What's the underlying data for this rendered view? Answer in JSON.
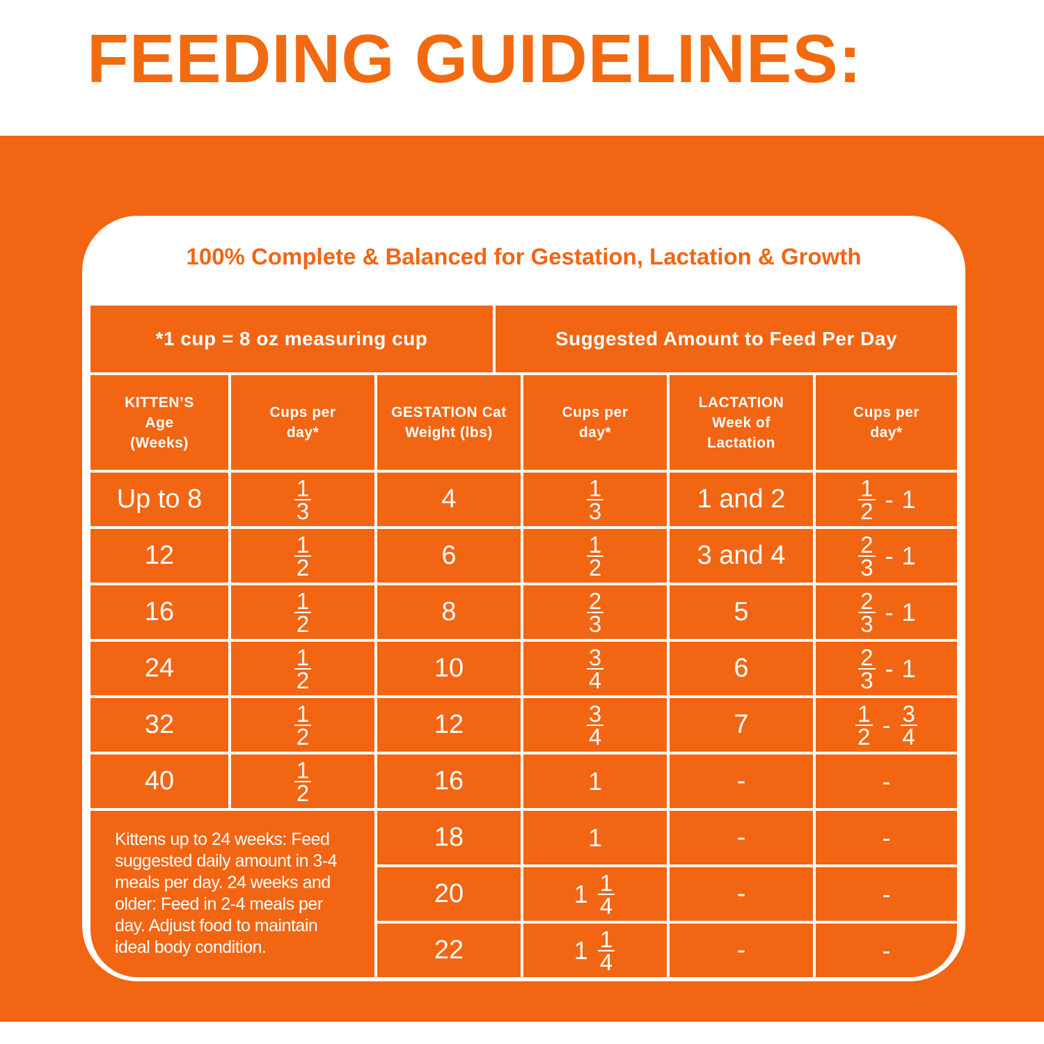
{
  "header": {
    "title": "FEEDING GUIDELINES:"
  },
  "card": {
    "subtitle": "100% Complete & Balanced for Gestation, Lactation & Growth"
  },
  "table": {
    "top_left": "*1 cup = 8 oz measuring cup",
    "top_right": "Suggested Amount to Feed Per Day",
    "columns": [
      [
        "KITTEN’S",
        "Age",
        "(Weeks)"
      ],
      [
        "Cups per",
        "day*"
      ],
      [
        "GESTATION Cat",
        "Weight (lbs)"
      ],
      [
        "Cups per",
        "day*"
      ],
      [
        "LACTATION",
        "Week of",
        "Lactation"
      ],
      [
        "Cups per",
        "day*"
      ]
    ],
    "kitten_rows": [
      [
        "Up to 8",
        [
          {
            "num": "1",
            "den": "3"
          }
        ]
      ],
      [
        "12",
        [
          {
            "num": "1",
            "den": "2"
          }
        ]
      ],
      [
        "16",
        [
          {
            "num": "1",
            "den": "2"
          }
        ]
      ],
      [
        "24",
        [
          {
            "num": "1",
            "den": "2"
          }
        ]
      ],
      [
        "32",
        [
          {
            "num": "1",
            "den": "2"
          }
        ]
      ],
      [
        "40",
        [
          {
            "num": "1",
            "den": "2"
          }
        ]
      ]
    ],
    "mother_rows": [
      [
        "4",
        [
          {
            "num": "1",
            "den": "3"
          }
        ],
        "1 and 2",
        [
          {
            "num": "1",
            "den": "2"
          },
          "-",
          "1"
        ]
      ],
      [
        "6",
        [
          {
            "num": "1",
            "den": "2"
          }
        ],
        "3 and 4",
        [
          {
            "num": "2",
            "den": "3"
          },
          "-",
          "1"
        ]
      ],
      [
        "8",
        [
          {
            "num": "2",
            "den": "3"
          }
        ],
        "5",
        [
          {
            "num": "2",
            "den": "3"
          },
          "-",
          "1"
        ]
      ],
      [
        "10",
        [
          {
            "num": "3",
            "den": "4"
          }
        ],
        "6",
        [
          {
            "num": "2",
            "den": "3"
          },
          "-",
          "1"
        ]
      ],
      [
        "12",
        [
          {
            "num": "3",
            "den": "4"
          }
        ],
        "7",
        [
          {
            "num": "1",
            "den": "2"
          },
          "-",
          {
            "num": "3",
            "den": "4"
          }
        ]
      ],
      [
        "16",
        [
          "1"
        ],
        "-",
        [
          "-"
        ]
      ],
      [
        "18",
        [
          "1"
        ],
        "-",
        [
          "-"
        ]
      ],
      [
        "20",
        [
          "1",
          {
            "num": "1",
            "den": "4"
          }
        ],
        "-",
        [
          "-"
        ]
      ],
      [
        "22",
        [
          "1",
          {
            "num": "1",
            "den": "4"
          }
        ],
        "-",
        [
          "-"
        ]
      ]
    ],
    "note": "Kittens up to 24 weeks: Feed suggested daily amount in 3-4 meals per day. 24 weeks and older: Feed in 2-4 meals per day. Adjust food to maintain ideal body condition."
  }
}
